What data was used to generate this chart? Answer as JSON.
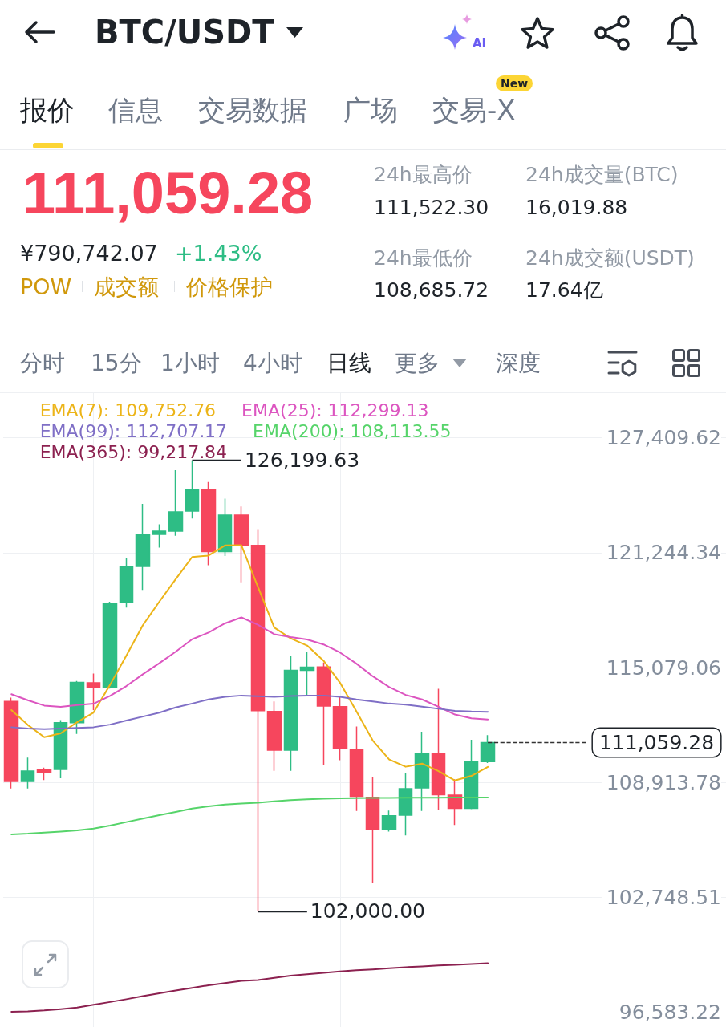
{
  "chart_data": {
    "type": "candlestick",
    "title": "BTC/USDT",
    "categories": [
      null,
      null,
      null,
      null,
      null,
      null,
      null,
      null,
      null,
      null,
      null,
      null,
      null,
      null,
      null,
      null,
      null,
      null,
      null,
      null,
      null,
      null,
      null,
      null,
      null,
      null,
      null,
      null,
      null,
      null
    ],
    "ohlc": [
      [
        113260,
        113470,
        108590,
        108970
      ],
      [
        108970,
        110250,
        108590,
        109530
      ],
      [
        109610,
        109710,
        109050,
        109470
      ],
      [
        109610,
        112260,
        109140,
        112120
      ],
      [
        112120,
        114360,
        111520,
        114290
      ],
      [
        114260,
        114760,
        112800,
        114030
      ],
      [
        114030,
        118610,
        113950,
        118540
      ],
      [
        118570,
        120980,
        118300,
        120500
      ],
      [
        120500,
        123860,
        119250,
        122200
      ],
      [
        122230,
        122760,
        121520,
        122400
      ],
      [
        122400,
        125670,
        122150,
        123430
      ],
      [
        123470,
        126199.63,
        123080,
        124610
      ],
      [
        124610,
        125030,
        120570,
        121300
      ],
      [
        121300,
        124140,
        121060,
        123260
      ],
      [
        123260,
        123720,
        119650,
        121660
      ],
      [
        121630,
        122510,
        102000,
        112770
      ],
      [
        112730,
        113260,
        109540,
        110650
      ],
      [
        110650,
        115700,
        109540,
        114930
      ],
      [
        114930,
        115920,
        113580,
        115100
      ],
      [
        115110,
        115350,
        109850,
        113010
      ],
      [
        112980,
        113510,
        110110,
        110730
      ],
      [
        110700,
        111920,
        107390,
        108170
      ],
      [
        108120,
        109190,
        103520,
        106390
      ],
      [
        106390,
        107410,
        106280,
        107130
      ],
      [
        107160,
        109400,
        106070,
        108580
      ],
      [
        108620,
        111640,
        107390,
        110460
      ],
      [
        110460,
        113940,
        107460,
        108260
      ],
      [
        108240,
        109090,
        106640,
        107530
      ],
      [
        107530,
        111210,
        107490,
        110010
      ],
      [
        110040,
        111450,
        109960,
        111059.28
      ]
    ],
    "colors": [
      "#f6465d",
      "#2ebd85",
      "#f6465d",
      "#2ebd85",
      "#2ebd85",
      "#f6465d",
      "#2ebd85",
      "#2ebd85",
      "#2ebd85",
      "#2ebd85",
      "#2ebd85",
      "#2ebd85",
      "#f6465d",
      "#2ebd85",
      "#f6465d",
      "#f6465d",
      "#f6465d",
      "#2ebd85",
      "#2ebd85",
      "#f6465d",
      "#f6465d",
      "#f6465d",
      "#f6465d",
      "#2ebd85",
      "#2ebd85",
      "#2ebd85",
      "#f6465d",
      "#f6465d",
      "#2ebd85",
      "#2ebd85"
    ],
    "series": [
      {
        "type": "line",
        "name": "EMA(7): 109,752.76",
        "color": "#ecb418",
        "values": [
          112800,
          112000,
          111350,
          111550,
          112150,
          112670,
          114150,
          115730,
          117350,
          118610,
          119820,
          121010,
          121090,
          121630,
          121640,
          119420,
          117230,
          116650,
          116260,
          115450,
          114270,
          112740,
          111160,
          110150,
          109760,
          109930,
          109520,
          109020,
          109270,
          109752.76
        ]
      },
      {
        "type": "line",
        "name": "EMA(25): 112,299.13",
        "color": "#dc55c0",
        "values": [
          113650,
          113330,
          113040,
          112970,
          113070,
          113140,
          113560,
          114090,
          114720,
          115310,
          115930,
          116600,
          116960,
          117450,
          117770,
          117380,
          116870,
          116720,
          116590,
          116320,
          115890,
          115290,
          114610,
          114030,
          113610,
          113370,
          112980,
          112560,
          112360,
          112299.13
        ]
      },
      {
        "type": "line",
        "name": "EMA(99): 112,707.17",
        "color": "#7f6fc6",
        "values": [
          111880,
          111810,
          111780,
          111810,
          111840,
          111880,
          112020,
          112240,
          112450,
          112660,
          112940,
          113150,
          113370,
          113510,
          113580,
          113540,
          113510,
          113550,
          113580,
          113580,
          113510,
          113370,
          113260,
          113150,
          113090,
          112980,
          112870,
          112760,
          112720,
          112707.17
        ]
      },
      {
        "type": "line",
        "name": "EMA(200): 108,113.55",
        "color": "#56d46a",
        "values": [
          106130,
          106170,
          106230,
          106280,
          106340,
          106440,
          106600,
          106790,
          106980,
          107160,
          107330,
          107520,
          107640,
          107730,
          107790,
          107830,
          107900,
          107970,
          108010,
          108040,
          108070,
          108080,
          108090,
          108090,
          108100,
          108100,
          108100,
          108110,
          108110,
          108113.55
        ]
      },
      {
        "type": "line",
        "name": "EMA(365): 99,217.84",
        "color": "#8c2150",
        "values": [
          96620,
          96640,
          96690,
          96760,
          96840,
          96990,
          97140,
          97290,
          97460,
          97610,
          97760,
          97900,
          98040,
          98160,
          98270,
          98320,
          98440,
          98550,
          98630,
          98700,
          98780,
          98840,
          98890,
          98950,
          99010,
          99050,
          99100,
          99140,
          99180,
          99217.84
        ]
      }
    ],
    "ylim": [
      95800,
      129800
    ],
    "yticks": [
      {
        "value": 96583.22,
        "label": "96,583.22"
      },
      {
        "value": 102748.51,
        "label": "102,748.51"
      },
      {
        "value": 108913.78,
        "label": "108,913.78"
      },
      {
        "value": 115079.06,
        "label": "115,079.06"
      },
      {
        "value": 121244.34,
        "label": "121,244.34"
      },
      {
        "value": 127409.62,
        "label": "127,409.62"
      }
    ],
    "ref_lines": [
      {
        "axis": "y",
        "value": 111059.28,
        "label": "111,059.28",
        "color": "#333333",
        "line_style": "dashed"
      }
    ],
    "annotations": [
      "报价",
      "信息",
      "交易数据",
      "广场",
      "交易-X",
      "New",
      "111,059.28",
      "¥790,742.07",
      "+1.43%",
      "POW",
      "成交额",
      "价格保护",
      "24h最高价",
      "111,522.30",
      "24h成交量(BTC)",
      "16,019.88",
      "24h最低价",
      "108,685.72",
      "24h成交额(USDT)",
      "17.64亿",
      "分时",
      "15分",
      "1小时",
      "4小时",
      "日线",
      "更多",
      "深度",
      "AI",
      "126,199.63",
      "102,000.00"
    ],
    "grid": true,
    "legend": "top",
    "tick_labels": "y"
  }
}
